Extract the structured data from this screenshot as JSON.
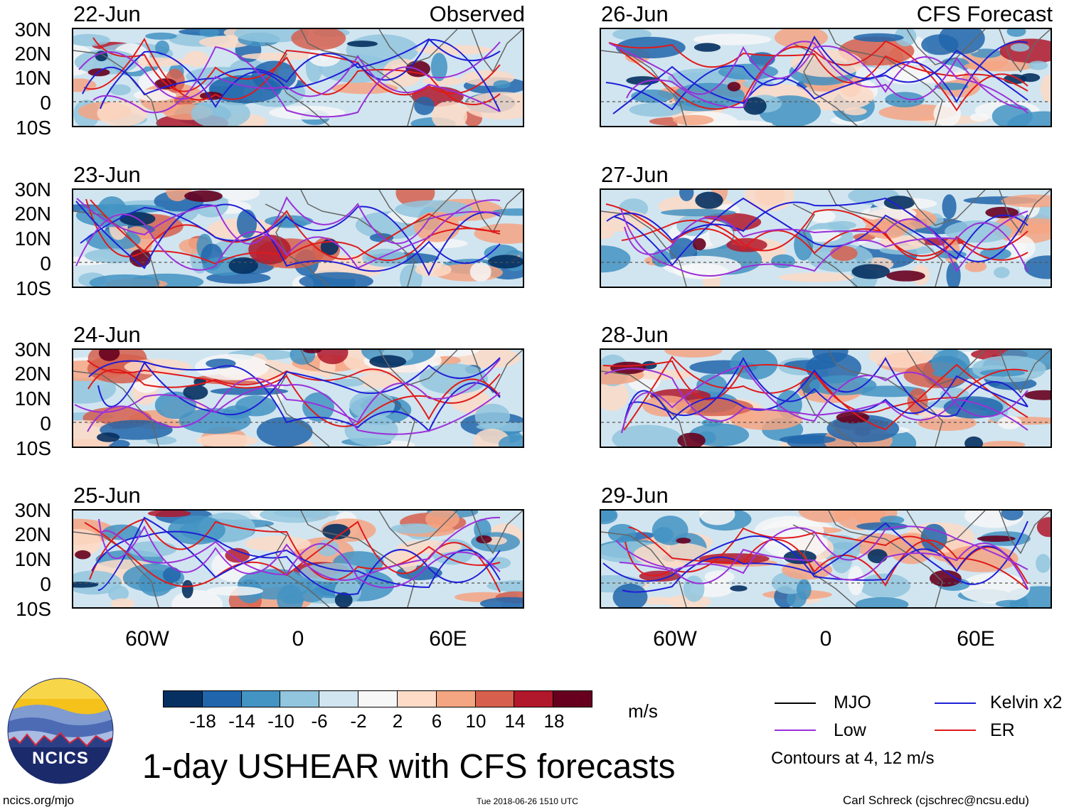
{
  "headers": {
    "left": "Observed",
    "right": "CFS Forecast"
  },
  "panels": [
    {
      "date": "22-Jun",
      "column": "observed"
    },
    {
      "date": "23-Jun",
      "column": "observed"
    },
    {
      "date": "24-Jun",
      "column": "observed"
    },
    {
      "date": "25-Jun",
      "column": "observed"
    },
    {
      "date": "26-Jun",
      "column": "forecast"
    },
    {
      "date": "27-Jun",
      "column": "forecast"
    },
    {
      "date": "28-Jun",
      "column": "forecast"
    },
    {
      "date": "29-Jun",
      "column": "forecast"
    }
  ],
  "y_axis": [
    "30N",
    "20N",
    "10N",
    "0",
    "10S"
  ],
  "x_axis": [
    "60W",
    "0",
    "60E"
  ],
  "colorbar": {
    "colors": [
      "#053061",
      "#2166ac",
      "#4393c3",
      "#92c5de",
      "#d1e5f0",
      "#f7f7f7",
      "#fddbc7",
      "#f4a582",
      "#d6604d",
      "#b2182b",
      "#67001f"
    ],
    "labels": [
      "-18",
      "-14",
      "-10",
      "-6",
      "-2",
      "2",
      "6",
      "10",
      "14",
      "18"
    ],
    "units": "m/s"
  },
  "legend": {
    "items": [
      {
        "label": "MJO",
        "color": "#000000"
      },
      {
        "label": "Kelvin x2",
        "color": "#1f1fd6"
      },
      {
        "label": "Low",
        "color": "#9b30d9"
      },
      {
        "label": "ER",
        "color": "#e01a1a"
      }
    ],
    "note": "Contours at 4, 12 m/s"
  },
  "logo": {
    "text": "NCICS"
  },
  "title": "1-day USHEAR with CFS forecasts",
  "footer": {
    "left": "ncics.org/mjo",
    "center": "Tue 2018-06-26 1510 UTC",
    "right": "Carl Schreck (cjschrec@ncsu.edu)"
  }
}
